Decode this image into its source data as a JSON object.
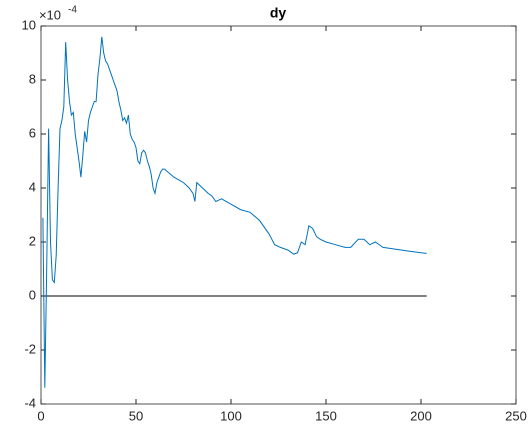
{
  "chart_data": {
    "type": "line",
    "title": "dy",
    "y_multiplier_base": "×10",
    "y_multiplier_exponent": "-4",
    "x": [
      1,
      2,
      3,
      4,
      5,
      6,
      7,
      8,
      9,
      10,
      11,
      12,
      13,
      14,
      15,
      16,
      17,
      18,
      19,
      20,
      21,
      22,
      23,
      24,
      25,
      26,
      27,
      28,
      29,
      30,
      31,
      32,
      33,
      34,
      35,
      36,
      37,
      38,
      39,
      40,
      41,
      42,
      43,
      44,
      45,
      46,
      47,
      48,
      49,
      50,
      51,
      52,
      53,
      54,
      55,
      56,
      57,
      58,
      59,
      60,
      61,
      62,
      63,
      64,
      65,
      70,
      75,
      78,
      80,
      81,
      82,
      85,
      88,
      90,
      92,
      95,
      100,
      105,
      110,
      115,
      120,
      123,
      126,
      130,
      133,
      135,
      137,
      139,
      141,
      143,
      145,
      147,
      150,
      155,
      160,
      163,
      167,
      170,
      173,
      176,
      180,
      185,
      190,
      195,
      200,
      203
    ],
    "series": [
      {
        "color": "#0072bd",
        "values": [
          2.9,
          -3.4,
          1.0,
          6.2,
          2.0,
          0.6,
          0.5,
          1.5,
          4.0,
          6.2,
          6.5,
          7.0,
          9.4,
          8.0,
          7.2,
          6.7,
          6.8,
          6.0,
          5.5,
          5.0,
          4.4,
          5.2,
          6.1,
          5.7,
          6.5,
          6.8,
          7.0,
          7.2,
          7.2,
          8.2,
          8.8,
          9.6,
          9.0,
          8.7,
          8.6,
          8.4,
          8.2,
          8.0,
          7.8,
          7.6,
          7.2,
          6.9,
          6.5,
          6.6,
          6.4,
          6.7,
          6.0,
          5.8,
          5.7,
          5.5,
          5.0,
          4.9,
          5.3,
          5.4,
          5.3,
          5.0,
          4.8,
          4.5,
          4.0,
          3.8,
          4.2,
          4.4,
          4.6,
          4.7,
          4.7,
          4.4,
          4.2,
          4.0,
          3.8,
          3.5,
          4.2,
          4.0,
          3.8,
          3.7,
          3.5,
          3.6,
          3.4,
          3.2,
          3.1,
          2.8,
          2.3,
          1.9,
          1.8,
          1.7,
          1.55,
          1.6,
          2.0,
          1.9,
          2.6,
          2.5,
          2.2,
          2.1,
          2.0,
          1.9,
          1.8,
          1.8,
          2.1,
          2.1,
          1.9,
          2.0,
          1.8,
          1.75,
          1.7,
          1.65,
          1.6,
          1.58
        ]
      }
    ],
    "reference_line": {
      "y": 0,
      "x": [
        0,
        203
      ],
      "color": "#000000"
    },
    "xlim": [
      0,
      250
    ],
    "xticks": [
      0,
      50,
      100,
      150,
      200,
      250
    ],
    "ylim": [
      -4,
      10
    ],
    "yticks": [
      -4,
      -2,
      0,
      2,
      4,
      6,
      8,
      10
    ]
  }
}
